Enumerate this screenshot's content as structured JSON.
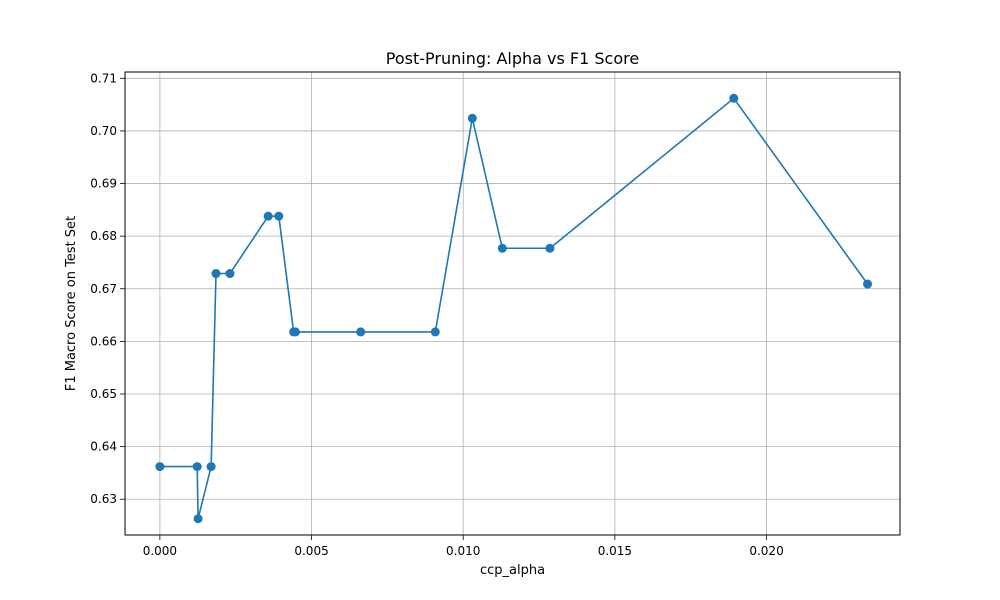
{
  "chart_data": {
    "type": "line",
    "title": "Post-Pruning: Alpha vs F1 Score",
    "xlabel": "ccp_alpha",
    "ylabel": "F1 Macro Score on Test Set",
    "xlim": [
      -0.00115,
      0.0244
    ],
    "ylim": [
      0.6232,
      0.7112
    ],
    "xticks": [
      0.0,
      0.005,
      0.01,
      0.015,
      0.02
    ],
    "xtick_labels": [
      "0.000",
      "0.005",
      "0.010",
      "0.015",
      "0.020"
    ],
    "yticks": [
      0.63,
      0.64,
      0.65,
      0.66,
      0.67,
      0.68,
      0.69,
      0.7,
      0.71
    ],
    "ytick_labels": [
      "0.63",
      "0.64",
      "0.65",
      "0.66",
      "0.67",
      "0.68",
      "0.69",
      "0.70",
      "0.71"
    ],
    "grid": true,
    "marker": "circle",
    "series_color": "#1f77b4",
    "series": [
      {
        "x": [
          0.0,
          0.00123,
          0.00126,
          0.00169,
          0.00185,
          0.00231,
          0.00357,
          0.00392,
          0.00441,
          0.00447,
          0.00662,
          0.00908,
          0.0103,
          0.01129,
          0.01286,
          0.01892,
          0.02333
        ],
        "y": [
          0.6362,
          0.6362,
          0.6263,
          0.6362,
          0.6729,
          0.6729,
          0.6838,
          0.6838,
          0.6618,
          0.6618,
          0.6618,
          0.6618,
          0.7024,
          0.6777,
          0.6777,
          0.7062,
          0.6709
        ]
      }
    ]
  }
}
